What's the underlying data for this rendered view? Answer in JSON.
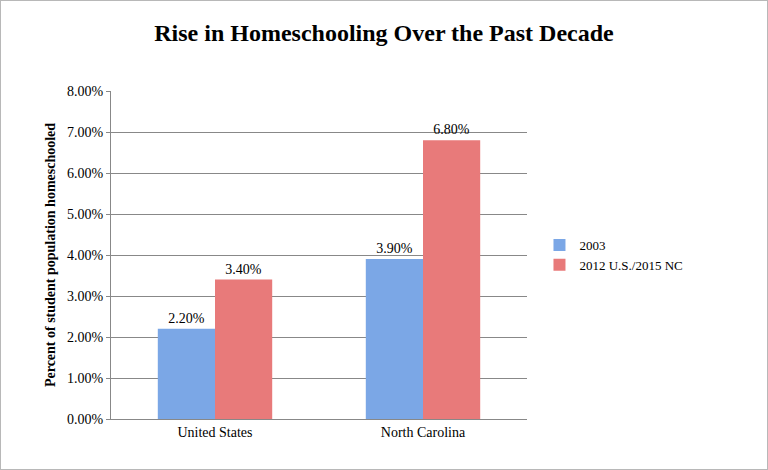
{
  "chart_data": {
    "type": "bar",
    "title": "Rise in Homeschooling Over the Past Decade",
    "y_label": "Percent of student population homeschooled",
    "categories": [
      "United States",
      "North Carolina"
    ],
    "series": [
      {
        "name": "2003",
        "color": "#7ba7e6",
        "values": [
          2.2,
          3.9
        ],
        "value_labels": [
          "2.20%",
          "3.90%"
        ]
      },
      {
        "name": "2012 U.S./2015 NC",
        "color": "#e87a7a",
        "values": [
          3.4,
          6.8
        ],
        "value_labels": [
          "3.40%",
          "6.80%"
        ]
      }
    ],
    "ylim": [
      0,
      8
    ],
    "yticks": [
      {
        "value": 0,
        "label": "0.00%"
      },
      {
        "value": 1,
        "label": "1.00%"
      },
      {
        "value": 2,
        "label": "2.00%"
      },
      {
        "value": 3,
        "label": "3.00%"
      },
      {
        "value": 4,
        "label": "4.00%"
      },
      {
        "value": 5,
        "label": "5.00%"
      },
      {
        "value": 6,
        "label": "6.00%"
      },
      {
        "value": 7,
        "label": "7.00%"
      },
      {
        "value": 8,
        "label": "8.00%"
      }
    ],
    "grid": true,
    "legend": "right",
    "data_labels": true
  }
}
